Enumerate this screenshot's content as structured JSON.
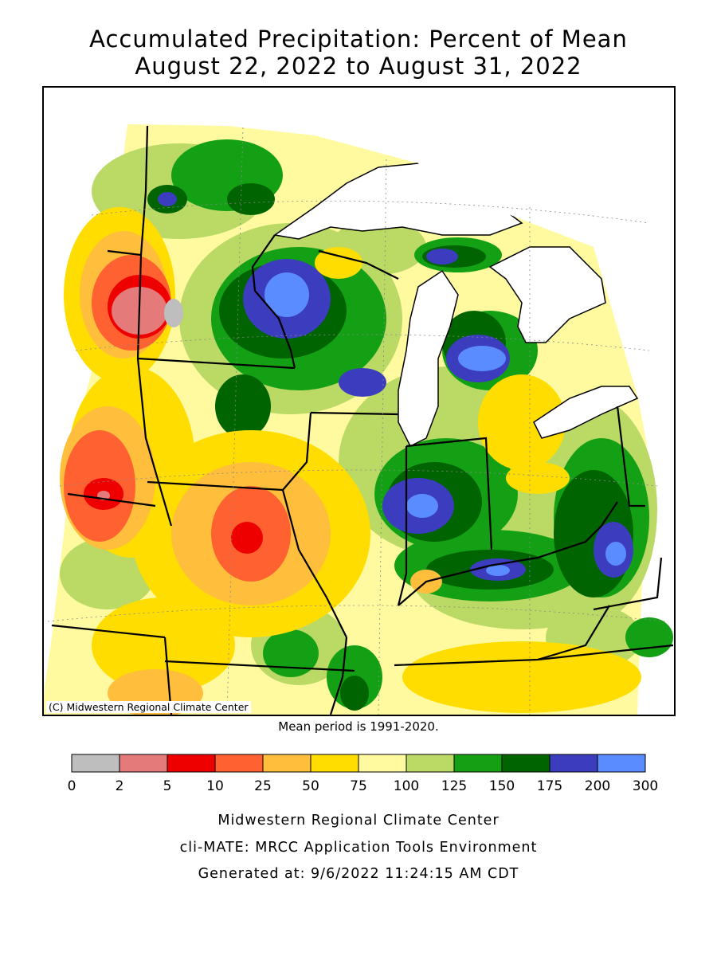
{
  "title_line1": "Accumulated Precipitation: Percent of Mean",
  "title_line2": "August 22, 2022 to August 31, 2022",
  "copyright": "(C) Midwestern Regional Climate Center",
  "mean_period": "Mean period is 1991-2020.",
  "legend": {
    "bins": [
      {
        "color": "#bebebe"
      },
      {
        "color": "#e47a7a"
      },
      {
        "color": "#ee0000"
      },
      {
        "color": "#ff6130"
      },
      {
        "color": "#ffbe3c"
      },
      {
        "color": "#ffdd00"
      },
      {
        "color": "#fffaa0"
      },
      {
        "color": "#bad965"
      },
      {
        "color": "#14a014"
      },
      {
        "color": "#006400"
      },
      {
        "color": "#3c3cbe"
      },
      {
        "color": "#5a8cff"
      }
    ],
    "ticks": [
      "0",
      "2",
      "5",
      "10",
      "25",
      "50",
      "75",
      "100",
      "125",
      "150",
      "175",
      "200",
      "300"
    ]
  },
  "footer": {
    "line1": "Midwestern Regional Climate Center",
    "line2": "cli-MATE: MRCC Application Tools Environment",
    "line3": "Generated at: 9/6/2022 11:24:15 AM CDT"
  }
}
